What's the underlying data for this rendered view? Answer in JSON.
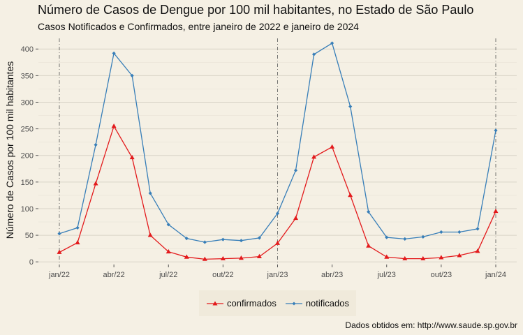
{
  "title": "Número de Casos de Dengue por 100 mil habitantes, no Estado de São Paulo",
  "subtitle": "Casos Notificados e Confirmados, entre janeiro de 2022 e janeiro de 2024",
  "caption": "Dados obtidos em: http://www.saude.sp.gov.br",
  "chart_data": {
    "type": "line",
    "ylabel": "Número de Casos por 100 mil habitantes",
    "xlabel": "",
    "x": [
      "2022-01",
      "2022-02",
      "2022-03",
      "2022-04",
      "2022-05",
      "2022-06",
      "2022-07",
      "2022-08",
      "2022-09",
      "2022-10",
      "2022-11",
      "2022-12",
      "2023-01",
      "2023-02",
      "2023-03",
      "2023-04",
      "2023-05",
      "2023-06",
      "2023-07",
      "2023-08",
      "2023-09",
      "2023-10",
      "2023-11",
      "2023-12",
      "2024-01"
    ],
    "x_ticks": [
      "jan/22",
      "abr/22",
      "jul/22",
      "out/22",
      "jan/23",
      "abr/23",
      "jul/23",
      "out/23",
      "jan/24"
    ],
    "y_ticks": [
      0,
      50,
      100,
      150,
      200,
      250,
      300,
      350,
      400
    ],
    "ylim": [
      -5,
      420
    ],
    "vertical_reference_lines_at": [
      "2022-01",
      "2023-01",
      "2024-01"
    ],
    "grid": true,
    "legend_position": "bottom",
    "series": [
      {
        "name": "confirmados",
        "color": "#e31a1c",
        "marker": "triangle",
        "values": [
          18,
          36,
          147,
          255,
          196,
          50,
          19,
          9,
          5,
          6,
          7,
          10,
          35,
          82,
          197,
          216,
          125,
          30,
          9,
          6,
          6,
          8,
          12,
          20,
          95
        ]
      },
      {
        "name": "notificados",
        "color": "#377eb8",
        "marker": "diamond",
        "values": [
          53,
          64,
          220,
          392,
          350,
          129,
          70,
          44,
          37,
          42,
          40,
          45,
          91,
          172,
          390,
          411,
          292,
          94,
          46,
          43,
          47,
          56,
          56,
          62,
          247
        ]
      }
    ]
  }
}
